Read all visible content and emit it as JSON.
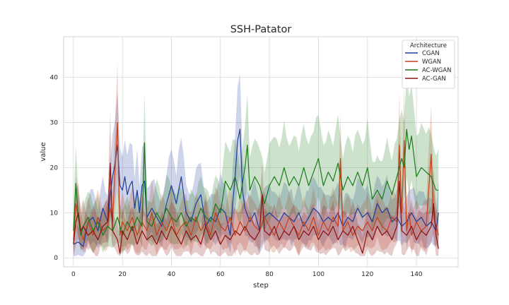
{
  "chart_data": {
    "type": "line",
    "title": "SSH-Patator",
    "xlabel": "step",
    "ylabel": "value",
    "xlim": [
      -4,
      157
    ],
    "ylim": [
      -2,
      49
    ],
    "xticks": [
      0,
      20,
      40,
      60,
      80,
      100,
      120,
      140
    ],
    "yticks": [
      0,
      10,
      20,
      30,
      40
    ],
    "grid": true,
    "legend": {
      "title": "Architecture",
      "placement": "top-right"
    },
    "series": [
      {
        "name": "CGAN",
        "color": "#1f3d99",
        "keypoints": [
          [
            0,
            3
          ],
          [
            2,
            3.5
          ],
          [
            4,
            2.5
          ],
          [
            6,
            8
          ],
          [
            8,
            9
          ],
          [
            10,
            6
          ],
          [
            12,
            11
          ],
          [
            14,
            8
          ],
          [
            15,
            14
          ],
          [
            16,
            18
          ],
          [
            17,
            21
          ],
          [
            18,
            25
          ],
          [
            19,
            16
          ],
          [
            20,
            15
          ],
          [
            21,
            18
          ],
          [
            22,
            14
          ],
          [
            23,
            16
          ],
          [
            24,
            17
          ],
          [
            25,
            11
          ],
          [
            26,
            15
          ],
          [
            27,
            10
          ],
          [
            28,
            16
          ],
          [
            29,
            17
          ],
          [
            30,
            9
          ],
          [
            32,
            11
          ],
          [
            34,
            9
          ],
          [
            36,
            7
          ],
          [
            38,
            12
          ],
          [
            40,
            16
          ],
          [
            42,
            12
          ],
          [
            44,
            18
          ],
          [
            46,
            10
          ],
          [
            48,
            8
          ],
          [
            50,
            12
          ],
          [
            52,
            14
          ],
          [
            54,
            7
          ],
          [
            56,
            9
          ],
          [
            58,
            8
          ],
          [
            60,
            11
          ],
          [
            62,
            10
          ],
          [
            64,
            5
          ],
          [
            65,
            12
          ],
          [
            66,
            18
          ],
          [
            67,
            26
          ],
          [
            68,
            28.5
          ],
          [
            69,
            15
          ],
          [
            70,
            11
          ],
          [
            72,
            8
          ],
          [
            74,
            10
          ],
          [
            76,
            6
          ],
          [
            78,
            9
          ],
          [
            80,
            10
          ],
          [
            82,
            9
          ],
          [
            84,
            8
          ],
          [
            86,
            10
          ],
          [
            88,
            9
          ],
          [
            90,
            8
          ],
          [
            92,
            10
          ],
          [
            94,
            7
          ],
          [
            96,
            9
          ],
          [
            98,
            11
          ],
          [
            100,
            10
          ],
          [
            102,
            8
          ],
          [
            104,
            9
          ],
          [
            106,
            8
          ],
          [
            108,
            10
          ],
          [
            110,
            7
          ],
          [
            112,
            9
          ],
          [
            114,
            8
          ],
          [
            116,
            11
          ],
          [
            118,
            9
          ],
          [
            120,
            10
          ],
          [
            122,
            8
          ],
          [
            124,
            12
          ],
          [
            126,
            10
          ],
          [
            128,
            11
          ],
          [
            130,
            8
          ],
          [
            132,
            9
          ],
          [
            134,
            7
          ],
          [
            136,
            8
          ],
          [
            138,
            10
          ],
          [
            140,
            8
          ],
          [
            142,
            9
          ],
          [
            144,
            7
          ],
          [
            146,
            8
          ],
          [
            148,
            6
          ],
          [
            149,
            10
          ]
        ]
      },
      {
        "name": "WGAN",
        "color": "#c4401a",
        "keypoints": [
          [
            0,
            4
          ],
          [
            1,
            12
          ],
          [
            2,
            9
          ],
          [
            3,
            6
          ],
          [
            4,
            4
          ],
          [
            6,
            8
          ],
          [
            8,
            5
          ],
          [
            10,
            9
          ],
          [
            12,
            6
          ],
          [
            14,
            7
          ],
          [
            15,
            11
          ],
          [
            16,
            8
          ],
          [
            17,
            20
          ],
          [
            18,
            30
          ],
          [
            19,
            5
          ],
          [
            20,
            8
          ],
          [
            22,
            6
          ],
          [
            24,
            9
          ],
          [
            26,
            5
          ],
          [
            28,
            8
          ],
          [
            30,
            6
          ],
          [
            32,
            10
          ],
          [
            34,
            5
          ],
          [
            36,
            8
          ],
          [
            38,
            6
          ],
          [
            40,
            9
          ],
          [
            42,
            5
          ],
          [
            44,
            7
          ],
          [
            46,
            8
          ],
          [
            48,
            5
          ],
          [
            50,
            9
          ],
          [
            52,
            6
          ],
          [
            54,
            8
          ],
          [
            56,
            5
          ],
          [
            58,
            10
          ],
          [
            60,
            7
          ],
          [
            62,
            6
          ],
          [
            64,
            9
          ],
          [
            66,
            5
          ],
          [
            68,
            8
          ],
          [
            70,
            6
          ],
          [
            72,
            9
          ],
          [
            74,
            7
          ],
          [
            76,
            6
          ],
          [
            78,
            9
          ],
          [
            80,
            7
          ],
          [
            82,
            5
          ],
          [
            84,
            8
          ],
          [
            86,
            6
          ],
          [
            88,
            9
          ],
          [
            90,
            7
          ],
          [
            92,
            5
          ],
          [
            94,
            8
          ],
          [
            96,
            6
          ],
          [
            98,
            9
          ],
          [
            100,
            5
          ],
          [
            102,
            8
          ],
          [
            104,
            6
          ],
          [
            106,
            9
          ],
          [
            108,
            7
          ],
          [
            109,
            22
          ],
          [
            110,
            6
          ],
          [
            112,
            8
          ],
          [
            114,
            5
          ],
          [
            116,
            7
          ],
          [
            118,
            6
          ],
          [
            120,
            8
          ],
          [
            122,
            6
          ],
          [
            124,
            9
          ],
          [
            126,
            7
          ],
          [
            128,
            6
          ],
          [
            130,
            9
          ],
          [
            132,
            8
          ],
          [
            133,
            25
          ],
          [
            134,
            10
          ],
          [
            135,
            26
          ],
          [
            136,
            6
          ],
          [
            137,
            10
          ],
          [
            138,
            5
          ],
          [
            140,
            8
          ],
          [
            142,
            6
          ],
          [
            144,
            7
          ],
          [
            146,
            23
          ],
          [
            147,
            9
          ],
          [
            148,
            7
          ],
          [
            149,
            5
          ]
        ]
      },
      {
        "name": "AC-WGAN",
        "color": "#1a7a1a",
        "keypoints": [
          [
            0,
            6
          ],
          [
            1,
            16.5
          ],
          [
            2,
            9
          ],
          [
            3,
            5
          ],
          [
            4,
            7
          ],
          [
            6,
            9
          ],
          [
            8,
            6
          ],
          [
            10,
            8
          ],
          [
            12,
            5
          ],
          [
            14,
            7
          ],
          [
            16,
            6
          ],
          [
            18,
            9
          ],
          [
            20,
            5
          ],
          [
            22,
            8
          ],
          [
            24,
            6
          ],
          [
            26,
            9
          ],
          [
            28,
            7
          ],
          [
            29,
            25.5
          ],
          [
            30,
            8
          ],
          [
            32,
            7
          ],
          [
            34,
            10
          ],
          [
            36,
            8
          ],
          [
            38,
            11
          ],
          [
            40,
            9
          ],
          [
            42,
            8
          ],
          [
            44,
            10
          ],
          [
            46,
            7
          ],
          [
            48,
            9
          ],
          [
            50,
            8
          ],
          [
            52,
            11
          ],
          [
            54,
            9
          ],
          [
            56,
            8
          ],
          [
            58,
            12
          ],
          [
            60,
            10
          ],
          [
            62,
            17
          ],
          [
            64,
            15
          ],
          [
            66,
            18
          ],
          [
            68,
            13
          ],
          [
            70,
            20
          ],
          [
            71,
            25
          ],
          [
            72,
            15
          ],
          [
            74,
            18
          ],
          [
            76,
            16
          ],
          [
            78,
            12
          ],
          [
            80,
            16
          ],
          [
            82,
            18
          ],
          [
            84,
            16
          ],
          [
            86,
            20
          ],
          [
            88,
            16
          ],
          [
            90,
            18
          ],
          [
            92,
            16
          ],
          [
            94,
            20
          ],
          [
            96,
            16
          ],
          [
            98,
            19
          ],
          [
            100,
            22
          ],
          [
            102,
            16
          ],
          [
            104,
            19
          ],
          [
            106,
            17
          ],
          [
            108,
            21
          ],
          [
            110,
            15
          ],
          [
            112,
            18
          ],
          [
            114,
            16
          ],
          [
            116,
            19
          ],
          [
            118,
            16
          ],
          [
            120,
            20
          ],
          [
            122,
            13
          ],
          [
            124,
            15
          ],
          [
            126,
            13
          ],
          [
            128,
            17
          ],
          [
            130,
            14
          ],
          [
            132,
            18
          ],
          [
            134,
            22
          ],
          [
            135,
            20
          ],
          [
            136,
            28.5
          ],
          [
            137,
            24
          ],
          [
            138,
            27
          ],
          [
            140,
            18
          ],
          [
            142,
            20
          ],
          [
            144,
            19
          ],
          [
            146,
            18
          ],
          [
            148,
            15
          ],
          [
            149,
            15
          ]
        ]
      },
      {
        "name": "AC-GAN",
        "color": "#8b1010",
        "keypoints": [
          [
            0,
            3
          ],
          [
            1,
            8
          ],
          [
            2,
            10
          ],
          [
            3,
            6
          ],
          [
            4,
            7
          ],
          [
            6,
            5
          ],
          [
            8,
            6
          ],
          [
            10,
            4
          ],
          [
            12,
            7
          ],
          [
            14,
            8
          ],
          [
            15,
            21
          ],
          [
            16,
            6
          ],
          [
            18,
            4
          ],
          [
            19,
            1
          ],
          [
            20,
            6
          ],
          [
            22,
            4
          ],
          [
            24,
            7
          ],
          [
            26,
            3
          ],
          [
            28,
            6
          ],
          [
            30,
            4
          ],
          [
            32,
            5
          ],
          [
            34,
            3
          ],
          [
            36,
            6
          ],
          [
            38,
            4
          ],
          [
            40,
            7
          ],
          [
            42,
            5
          ],
          [
            44,
            3
          ],
          [
            46,
            6
          ],
          [
            48,
            4
          ],
          [
            50,
            5
          ],
          [
            52,
            3
          ],
          [
            54,
            7
          ],
          [
            56,
            4
          ],
          [
            58,
            6
          ],
          [
            60,
            3
          ],
          [
            62,
            5
          ],
          [
            64,
            4
          ],
          [
            66,
            6
          ],
          [
            68,
            5
          ],
          [
            70,
            7
          ],
          [
            72,
            5
          ],
          [
            74,
            4
          ],
          [
            76,
            6
          ],
          [
            77,
            14
          ],
          [
            78,
            6
          ],
          [
            80,
            5
          ],
          [
            82,
            7
          ],
          [
            84,
            4
          ],
          [
            86,
            6
          ],
          [
            88,
            5
          ],
          [
            90,
            7
          ],
          [
            92,
            4
          ],
          [
            94,
            6
          ],
          [
            96,
            5
          ],
          [
            98,
            7
          ],
          [
            100,
            4
          ],
          [
            102,
            6
          ],
          [
            104,
            5
          ],
          [
            106,
            7
          ],
          [
            108,
            4
          ],
          [
            110,
            6
          ],
          [
            112,
            5
          ],
          [
            114,
            7
          ],
          [
            116,
            4
          ],
          [
            118,
            1
          ],
          [
            120,
            6
          ],
          [
            122,
            4
          ],
          [
            124,
            7
          ],
          [
            126,
            5
          ],
          [
            128,
            6
          ],
          [
            130,
            4
          ],
          [
            132,
            7
          ],
          [
            133,
            17
          ],
          [
            134,
            6
          ],
          [
            136,
            5
          ],
          [
            138,
            7
          ],
          [
            140,
            4
          ],
          [
            142,
            6
          ],
          [
            144,
            5
          ],
          [
            146,
            7
          ],
          [
            147,
            12
          ],
          [
            148,
            5
          ],
          [
            149,
            2
          ]
        ]
      }
    ]
  }
}
